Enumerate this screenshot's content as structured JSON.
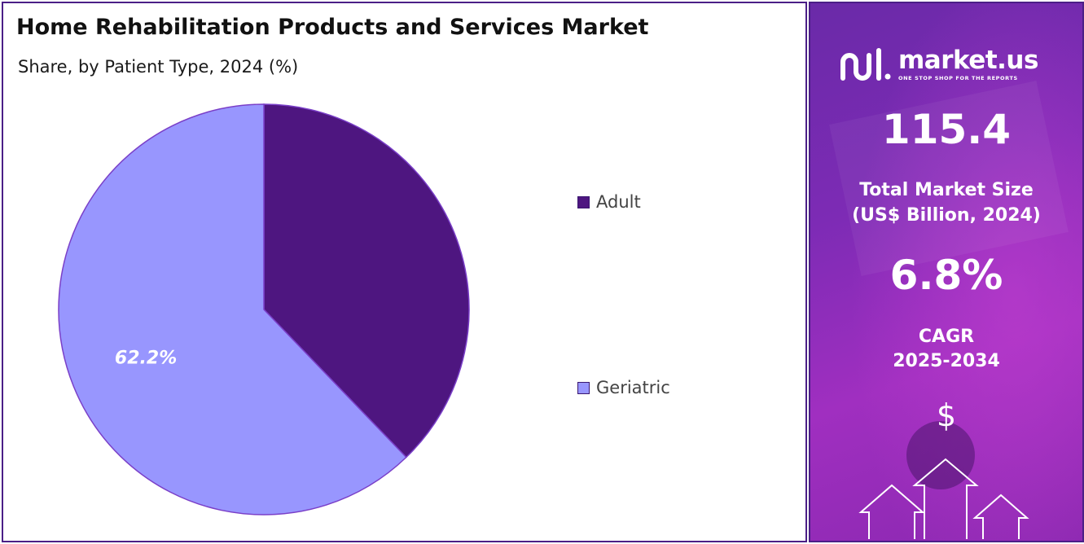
{
  "chart_data": {
    "type": "pie",
    "title": "Home Rehabilitation Products and Services Market",
    "subtitle": "Share, by Patient Type, 2024 (%)",
    "categories": [
      "Adult",
      "Geriatric"
    ],
    "values": [
      37.8,
      62.2
    ],
    "data_labels": [
      "",
      "62.2%"
    ],
    "legend_position": "right",
    "start_angle_deg": 0,
    "direction": "clockwise"
  },
  "colors": {
    "adult": "#4e1680",
    "geriatric": "#9896fe",
    "border": "#4b1f87",
    "slice_stroke": "#7a3fc8"
  },
  "side": {
    "brand": {
      "name": "market.us",
      "tagline": "ONE STOP SHOP FOR THE REPORTS",
      "logo_icon": "market-us-logo-icon"
    },
    "market_size_value": "115.4",
    "market_size_label_line1": "Total Market Size",
    "market_size_label_line2": "(US$ Billion, 2024)",
    "cagr_value": "6.8%",
    "cagr_label_line1": "CAGR",
    "cagr_label_line2": "2025-2034",
    "currency_symbol": "$",
    "arrows_icon": "up-arrows-icon"
  }
}
